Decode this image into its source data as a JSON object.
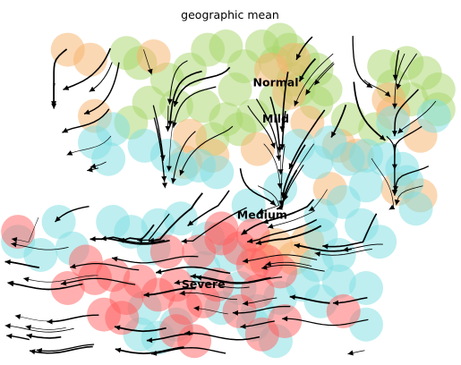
{
  "chart_data": {
    "type": "scatter",
    "title": "geographic mean",
    "xlabel": "",
    "ylabel": "",
    "axes_visible": false,
    "legend": "none",
    "grid": false,
    "xlim": [
      0,
      100
    ],
    "ylim": [
      0,
      100
    ],
    "overlay": "velocity streamlines with arrowheads",
    "categories": [
      {
        "name": "Normal",
        "color": "#a8d56a",
        "label_pos": [
          60,
          81
        ]
      },
      {
        "name": "Mild",
        "color": "#f8b26a",
        "label_pos": [
          60,
          70
        ]
      },
      {
        "name": "Medium",
        "color": "#7ddde2",
        "label_pos": [
          57,
          41
        ]
      },
      {
        "name": "Severe",
        "color": "#ff5f5f",
        "label_pos": [
          44,
          20
        ]
      }
    ],
    "series": [
      {
        "name": "Normal",
        "points": [
          [
            27,
            91
          ],
          [
            30,
            88
          ],
          [
            36,
            83
          ],
          [
            41,
            86
          ],
          [
            45,
            92
          ],
          [
            49,
            93
          ],
          [
            53,
            87
          ],
          [
            51,
            80
          ],
          [
            57,
            93
          ],
          [
            60,
            88
          ],
          [
            63,
            92
          ],
          [
            66,
            89
          ],
          [
            69,
            86
          ],
          [
            71,
            80
          ],
          [
            65,
            80
          ],
          [
            60,
            77
          ],
          [
            55,
            72
          ],
          [
            49,
            71
          ],
          [
            44,
            75
          ],
          [
            38,
            75
          ],
          [
            32,
            76
          ],
          [
            28,
            70
          ],
          [
            61,
            95
          ],
          [
            64,
            83
          ],
          [
            69,
            76
          ],
          [
            76,
            71
          ],
          [
            82,
            68
          ],
          [
            86,
            81
          ],
          [
            89,
            88
          ],
          [
            93,
            85
          ],
          [
            96,
            80
          ],
          [
            96,
            74
          ],
          [
            90,
            77
          ],
          [
            84,
            87
          ],
          [
            46,
            65
          ],
          [
            52,
            68
          ]
        ]
      },
      {
        "name": "Mild",
        "points": [
          [
            14,
            92
          ],
          [
            19,
            89
          ],
          [
            20,
            72
          ],
          [
            33,
            90
          ],
          [
            41,
            66
          ],
          [
            46,
            60
          ],
          [
            56,
            62
          ],
          [
            63,
            79
          ],
          [
            74,
            63
          ],
          [
            78,
            60
          ],
          [
            85,
            77
          ],
          [
            86,
            73
          ],
          [
            92,
            66
          ],
          [
            87,
            50
          ],
          [
            92,
            48
          ],
          [
            72,
            50
          ],
          [
            64,
            89
          ],
          [
            59,
            86
          ],
          [
            60,
            33
          ],
          [
            64,
            29
          ],
          [
            67,
            34
          ],
          [
            56,
            30
          ],
          [
            40,
            58
          ],
          [
            67,
            70
          ]
        ]
      },
      {
        "name": "Medium",
        "points": [
          [
            24,
            68
          ],
          [
            20,
            64
          ],
          [
            23,
            59
          ],
          [
            31,
            63
          ],
          [
            36,
            60
          ],
          [
            39,
            56
          ],
          [
            43,
            57
          ],
          [
            47,
            55
          ],
          [
            54,
            45
          ],
          [
            61,
            50
          ],
          [
            65,
            63
          ],
          [
            69,
            58
          ],
          [
            72,
            64
          ],
          [
            76,
            59
          ],
          [
            80,
            60
          ],
          [
            84,
            59
          ],
          [
            88,
            56
          ],
          [
            91,
            44
          ],
          [
            89,
            52
          ],
          [
            80,
            51
          ],
          [
            75,
            46
          ],
          [
            70,
            42
          ],
          [
            79,
            39
          ],
          [
            83,
            34
          ],
          [
            70,
            36
          ],
          [
            74,
            30
          ],
          [
            69,
            27
          ],
          [
            66,
            21
          ],
          [
            74,
            22
          ],
          [
            70,
            16
          ],
          [
            80,
            20
          ],
          [
            56,
            13
          ],
          [
            48,
            14
          ],
          [
            34,
            5
          ],
          [
            38,
            9
          ],
          [
            31,
            14
          ],
          [
            24,
            40
          ],
          [
            28,
            37
          ],
          [
            34,
            39
          ],
          [
            39,
            41
          ],
          [
            33,
            32
          ],
          [
            45,
            35
          ],
          [
            50,
            30
          ],
          [
            44,
            26
          ],
          [
            12,
            40
          ],
          [
            3,
            34
          ],
          [
            8,
            30
          ],
          [
            15,
            32
          ],
          [
            30,
            6
          ],
          [
            60,
            4
          ],
          [
            55,
            9
          ],
          [
            52,
            20
          ],
          [
            61,
            17
          ],
          [
            95,
            72
          ],
          [
            80,
            9
          ],
          [
            86,
            70
          ]
        ]
      },
      {
        "name": "Severe",
        "points": [
          [
            3,
            37
          ],
          [
            18,
            28
          ],
          [
            20,
            23
          ],
          [
            14,
            20
          ],
          [
            24,
            24
          ],
          [
            27,
            17
          ],
          [
            22,
            12
          ],
          [
            26,
            11
          ],
          [
            34,
            18
          ],
          [
            38,
            21
          ],
          [
            30,
            22
          ],
          [
            36,
            31
          ],
          [
            43,
            31
          ],
          [
            48,
            35
          ],
          [
            52,
            32
          ],
          [
            55,
            27
          ],
          [
            58,
            28
          ],
          [
            61,
            25
          ],
          [
            56,
            19
          ],
          [
            62,
            10
          ],
          [
            57,
            6
          ],
          [
            52,
            13
          ],
          [
            47,
            21
          ],
          [
            44,
            16
          ],
          [
            40,
            14
          ],
          [
            38,
            7
          ],
          [
            42,
            4
          ],
          [
            75,
            13
          ],
          [
            48,
            38
          ],
          [
            55,
            36
          ]
        ]
      }
    ]
  }
}
